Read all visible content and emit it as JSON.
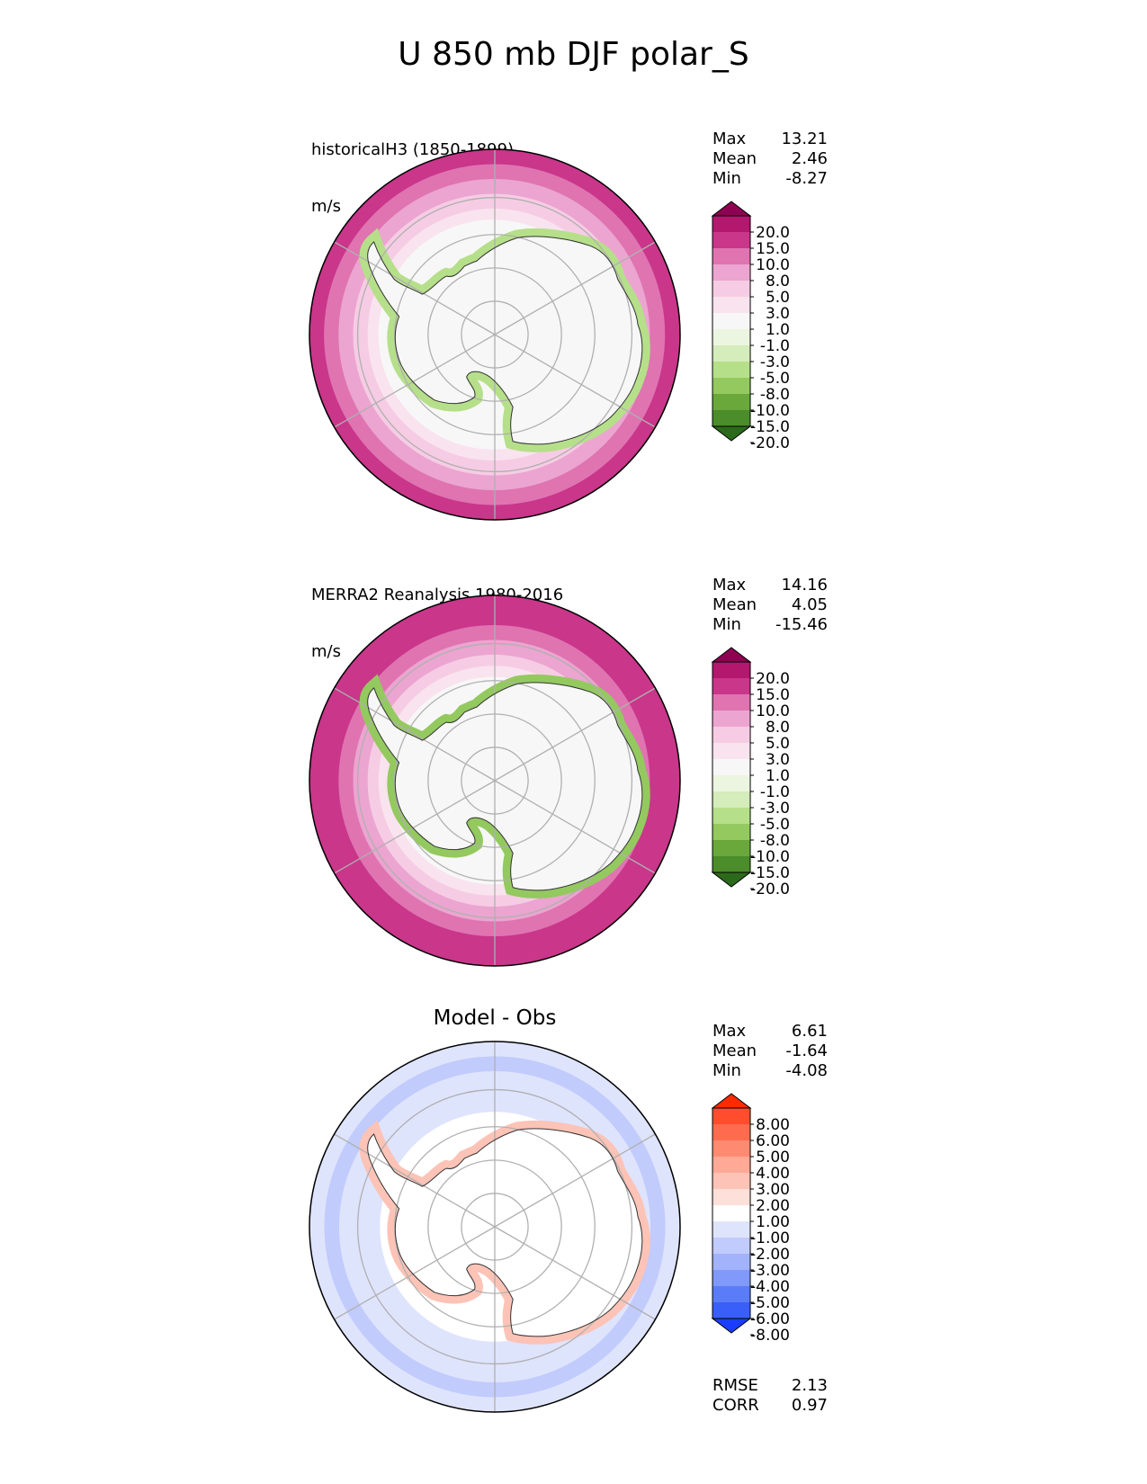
{
  "title": "U 850 mb DJF polar_S",
  "panels": [
    {
      "name": "historical",
      "label": "historicalH3 (1850-1899)",
      "units": "m/s",
      "stats": [
        {
          "label": "Max",
          "value": "13.21"
        },
        {
          "label": "Mean",
          "value": "2.46"
        },
        {
          "label": "Min",
          "value": "-8.27"
        }
      ],
      "colorbar": {
        "labels": [
          "20.0",
          "15.0",
          "10.0",
          "8.0",
          "5.0",
          "3.0",
          "1.0",
          "-1.0",
          "-3.0",
          "-5.0",
          "-8.0",
          "-10.0",
          "-15.0",
          "-20.0"
        ],
        "colors": [
          "#8e0152",
          "#b3176e",
          "#c9368a",
          "#df74b1",
          "#eba5d0",
          "#f6cce4",
          "#f9e3ef",
          "#f7f7f7",
          "#ecf5e0",
          "#d5ecbb",
          "#b6df8a",
          "#93c95f",
          "#6aa83b",
          "#4b8c2b",
          "#2b6a1a"
        ]
      }
    },
    {
      "name": "obs",
      "label": "MERRA2 Reanalysis 1980-2016",
      "units": "m/s",
      "stats": [
        {
          "label": "Max",
          "value": "14.16"
        },
        {
          "label": "Mean",
          "value": "4.05"
        },
        {
          "label": "Min",
          "value": "-15.46"
        }
      ],
      "colorbar": {
        "labels": [
          "20.0",
          "15.0",
          "10.0",
          "8.0",
          "5.0",
          "3.0",
          "1.0",
          "-1.0",
          "-3.0",
          "-5.0",
          "-8.0",
          "-10.0",
          "-15.0",
          "-20.0"
        ],
        "colors": [
          "#8e0152",
          "#b3176e",
          "#c9368a",
          "#df74b1",
          "#eba5d0",
          "#f6cce4",
          "#f9e3ef",
          "#f7f7f7",
          "#ecf5e0",
          "#d5ecbb",
          "#b6df8a",
          "#93c95f",
          "#6aa83b",
          "#4b8c2b",
          "#2b6a1a"
        ]
      }
    },
    {
      "name": "diff",
      "title": "Model - Obs",
      "stats": [
        {
          "label": "Max",
          "value": "6.61"
        },
        {
          "label": "Mean",
          "value": "-1.64"
        },
        {
          "label": "Min",
          "value": "-4.08"
        }
      ],
      "metrics": [
        {
          "label": "RMSE",
          "value": "2.13"
        },
        {
          "label": "CORR",
          "value": "0.97"
        }
      ],
      "colorbar": {
        "labels": [
          "8.00",
          "6.00",
          "5.00",
          "4.00",
          "3.00",
          "2.00",
          "1.00",
          "-1.00",
          "-2.00",
          "-3.00",
          "-4.00",
          "-5.00",
          "-6.00",
          "-8.00"
        ],
        "colors": [
          "#ff2a00",
          "#ff4d2e",
          "#ff6b4f",
          "#ff8a72",
          "#ffa996",
          "#fdc3b6",
          "#fde0d9",
          "#ffffff",
          "#dfe4fd",
          "#c1cbfc",
          "#a3b3fb",
          "#8099fa",
          "#5b7cf8",
          "#3a5ef8",
          "#1a3cff"
        ]
      }
    }
  ],
  "chart_data": [
    {
      "type": "heatmap",
      "projection": "south polar stereographic",
      "title": "historicalH3 (1850-1899)",
      "units": "m/s",
      "max": 13.21,
      "mean": 2.46,
      "min": -8.27,
      "levels": [
        -20,
        -15,
        -10,
        -8,
        -5,
        -3,
        -1,
        1,
        3,
        5,
        8,
        10,
        15,
        20
      ]
    },
    {
      "type": "heatmap",
      "projection": "south polar stereographic",
      "title": "MERRA2 Reanalysis 1980-2016",
      "units": "m/s",
      "max": 14.16,
      "mean": 4.05,
      "min": -15.46,
      "levels": [
        -20,
        -15,
        -10,
        -8,
        -5,
        -3,
        -1,
        1,
        3,
        5,
        8,
        10,
        15,
        20
      ]
    },
    {
      "type": "heatmap",
      "projection": "south polar stereographic",
      "title": "Model - Obs",
      "max": 6.61,
      "mean": -1.64,
      "min": -4.08,
      "rmse": 2.13,
      "corr": 0.97,
      "levels": [
        -8,
        -6,
        -5,
        -4,
        -3,
        -2,
        -1,
        1,
        2,
        3,
        4,
        5,
        6,
        8
      ]
    }
  ]
}
